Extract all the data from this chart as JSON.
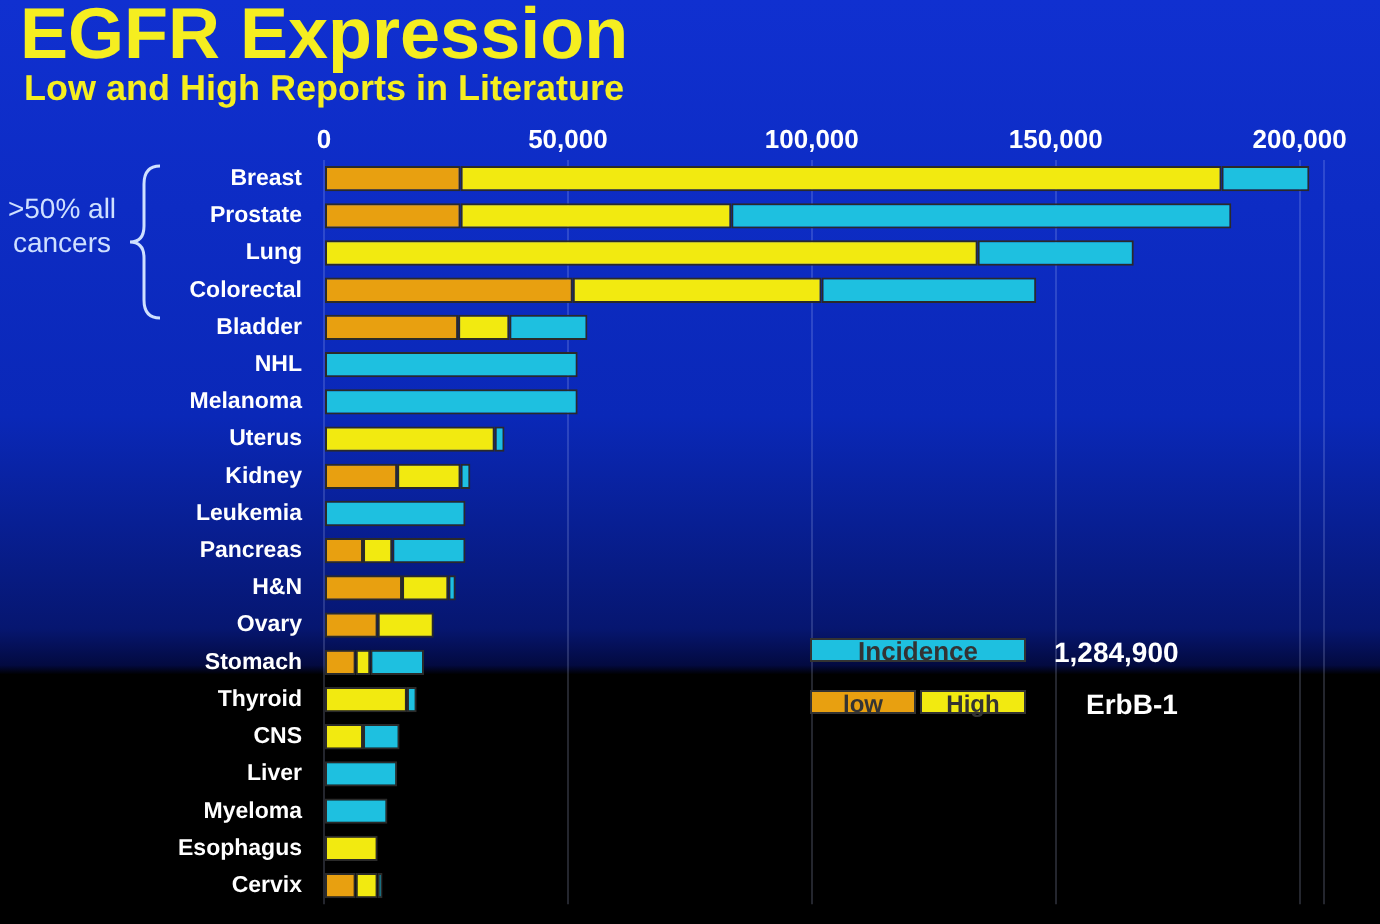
{
  "chart_data": {
    "type": "bar",
    "orientation": "horizontal",
    "stacked": true,
    "title": "EGFR Expression",
    "subtitle": "Low and High Reports in Literature",
    "categories": [
      "Breast",
      "Prostate",
      "Lung",
      "Colorectal",
      "Bladder",
      "NHL",
      "Melanoma",
      "Uterus",
      "Kidney",
      "Leukemia",
      "Pancreas",
      "H&N",
      "Ovary",
      "Stomach",
      "Thyroid",
      "CNS",
      "Liver",
      "Myeloma",
      "Esophagus",
      "Cervix"
    ],
    "series": [
      {
        "name": "low",
        "color": "#e8a010",
        "values": [
          28000,
          28000,
          null,
          51000,
          27500,
          null,
          null,
          null,
          15000,
          null,
          8000,
          16000,
          11000,
          6500,
          null,
          null,
          null,
          null,
          null,
          6500
        ]
      },
      {
        "name": "High",
        "color": "#f2ea10",
        "values": [
          156000,
          55500,
          134000,
          51000,
          10500,
          null,
          null,
          35000,
          13000,
          null,
          6000,
          9500,
          11500,
          3000,
          17000,
          8000,
          null,
          null,
          11000,
          4500
        ]
      },
      {
        "name": "Incidence",
        "color": "#1ec0e0",
        "values": [
          18000,
          102500,
          32000,
          44000,
          16000,
          52000,
          52000,
          2000,
          2000,
          29000,
          15000,
          1500,
          null,
          11000,
          2000,
          7500,
          15000,
          13000,
          null,
          1000
        ]
      }
    ],
    "xlim": [
      0,
      205000
    ],
    "xticks": [
      {
        "value": 0,
        "label": "0"
      },
      {
        "value": 50000,
        "label": "50,000"
      },
      {
        "value": 100000,
        "label": "100,000"
      },
      {
        "value": 150000,
        "label": "150,000"
      },
      {
        "value": 200000,
        "label": "200,000"
      }
    ],
    "grid": "x",
    "legend": "bottom right",
    "annotations": [
      ">50% all cancers",
      "1,284,900",
      "ErbB-1"
    ]
  }
}
